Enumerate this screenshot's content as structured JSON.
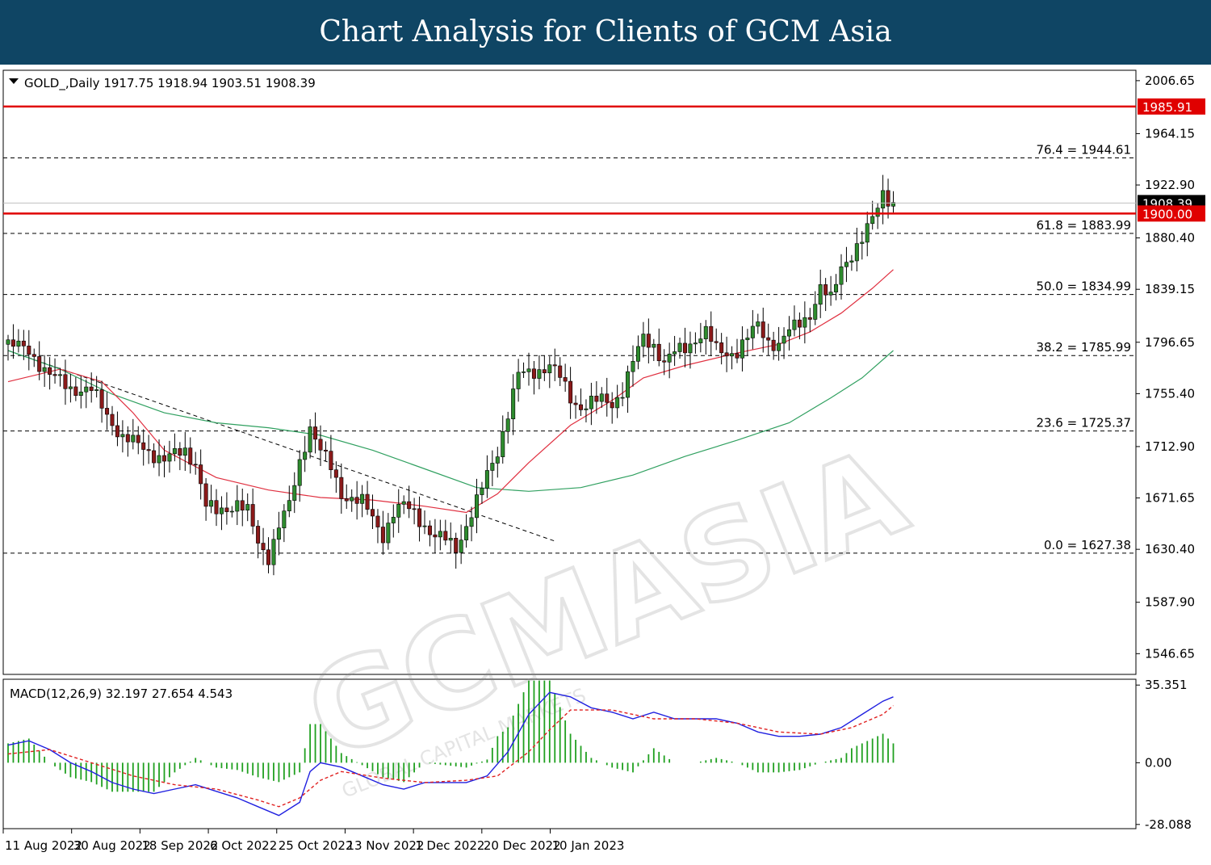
{
  "banner": {
    "title": "Chart Analysis for Clients of GCM Asia"
  },
  "watermark": {
    "brand": "GCMASIA",
    "tagline": "GLOBAL CAPITAL MARKETS"
  },
  "colors": {
    "banner": "#0f4564",
    "bull": "#2e8b2e",
    "bear": "#8b1a1a",
    "level": "#e00000",
    "ma_fast": "#e03040",
    "ma_slow": "#30a060",
    "macd": "#2020e0",
    "signal": "#e02020",
    "hist": "#20a020"
  },
  "chart_data": [
    {
      "type": "candlestick",
      "header": "GOLD_,Daily  1917.75 1918.94 1903.51 1908.39",
      "symbol": "GOLD_",
      "timeframe": "Daily",
      "ohlc_last": {
        "open": 1917.75,
        "high": 1918.94,
        "low": 1903.51,
        "close": 1908.39
      },
      "ylim": [
        1530,
        2015
      ],
      "y_ticks": [
        "2006.65",
        "1964.15",
        "1922.90",
        "1880.40",
        "1839.15",
        "1796.65",
        "1755.40",
        "1712.90",
        "1671.65",
        "1630.40",
        "1587.90",
        "1546.65"
      ],
      "x_ticks": [
        "11 Aug 2022",
        "30 Aug 2022",
        "18 Sep 2022",
        "6 Oct 2022",
        "25 Oct 2022",
        "13 Nov 2022",
        "1 Dec 2022",
        "20 Dec 2022",
        "10 Jan 2023"
      ],
      "current_price_label": "1908.39",
      "horizontal_levels": [
        {
          "value": 1985.91,
          "label": "1985.91"
        },
        {
          "value": 1900.0,
          "label": "1900.00"
        }
      ],
      "fibonacci": [
        {
          "ratio": "76.4",
          "value": 1944.61,
          "label": "76.4 = 1944.61"
        },
        {
          "ratio": "61.8",
          "value": 1883.99,
          "label": "61.8 = 1883.99"
        },
        {
          "ratio": "50.0",
          "value": 1834.99,
          "label": "50.0 = 1834.99"
        },
        {
          "ratio": "38.2",
          "value": 1785.99,
          "label": "38.2 = 1785.99"
        },
        {
          "ratio": "23.6",
          "value": 1725.37,
          "label": "23.6 = 1725.37"
        },
        {
          "ratio": "0.0",
          "value": 1627.38,
          "label": "0.0 = 1627.38"
        }
      ],
      "close_path": [
        [
          0,
          1795
        ],
        [
          4,
          1790
        ],
        [
          8,
          1770
        ],
        [
          12,
          1760
        ],
        [
          16,
          1758
        ],
        [
          18,
          1745
        ],
        [
          22,
          1720
        ],
        [
          26,
          1712
        ],
        [
          30,
          1702
        ],
        [
          34,
          1710
        ],
        [
          36,
          1700
        ],
        [
          38,
          1665
        ],
        [
          40,
          1660
        ],
        [
          44,
          1668
        ],
        [
          46,
          1660
        ],
        [
          48,
          1635
        ],
        [
          50,
          1625
        ],
        [
          52,
          1650
        ],
        [
          54,
          1665
        ],
        [
          56,
          1700
        ],
        [
          58,
          1730
        ],
        [
          60,
          1710
        ],
        [
          62,
          1695
        ],
        [
          64,
          1675
        ],
        [
          66,
          1672
        ],
        [
          68,
          1668
        ],
        [
          70,
          1655
        ],
        [
          72,
          1642
        ],
        [
          74,
          1660
        ],
        [
          76,
          1665
        ],
        [
          78,
          1660
        ],
        [
          80,
          1650
        ],
        [
          82,
          1640
        ],
        [
          84,
          1638
        ],
        [
          86,
          1632
        ],
        [
          88,
          1650
        ],
        [
          90,
          1668
        ],
        [
          92,
          1690
        ],
        [
          94,
          1710
        ],
        [
          96,
          1740
        ],
        [
          98,
          1770
        ],
        [
          100,
          1772
        ],
        [
          102,
          1775
        ],
        [
          104,
          1778
        ],
        [
          106,
          1768
        ],
        [
          108,
          1752
        ],
        [
          110,
          1745
        ],
        [
          112,
          1748
        ],
        [
          114,
          1750
        ],
        [
          116,
          1748
        ],
        [
          118,
          1758
        ],
        [
          120,
          1780
        ],
        [
          122,
          1800
        ],
        [
          124,
          1795
        ],
        [
          126,
          1780
        ],
        [
          128,
          1788
        ],
        [
          130,
          1792
        ],
        [
          132,
          1800
        ],
        [
          134,
          1805
        ],
        [
          136,
          1790
        ],
        [
          138,
          1788
        ],
        [
          140,
          1790
        ],
        [
          142,
          1800
        ],
        [
          144,
          1810
        ],
        [
          146,
          1798
        ],
        [
          148,
          1795
        ],
        [
          150,
          1805
        ],
        [
          152,
          1812
        ],
        [
          154,
          1820
        ],
        [
          156,
          1840
        ],
        [
          158,
          1830
        ],
        [
          160,
          1858
        ],
        [
          162,
          1868
        ],
        [
          164,
          1878
        ],
        [
          166,
          1895
        ],
        [
          168,
          1918
        ],
        [
          170,
          1908
        ]
      ],
      "ma_fast_path": [
        [
          0,
          1765
        ],
        [
          10,
          1775
        ],
        [
          18,
          1765
        ],
        [
          24,
          1740
        ],
        [
          30,
          1710
        ],
        [
          40,
          1688
        ],
        [
          50,
          1678
        ],
        [
          60,
          1672
        ],
        [
          70,
          1670
        ],
        [
          80,
          1665
        ],
        [
          88,
          1660
        ],
        [
          94,
          1675
        ],
        [
          100,
          1700
        ],
        [
          108,
          1730
        ],
        [
          116,
          1750
        ],
        [
          122,
          1768
        ],
        [
          130,
          1778
        ],
        [
          140,
          1788
        ],
        [
          148,
          1795
        ],
        [
          154,
          1805
        ],
        [
          160,
          1820
        ],
        [
          166,
          1840
        ],
        [
          170,
          1855
        ]
      ],
      "ma_slow_path": [
        [
          0,
          1790
        ],
        [
          10,
          1775
        ],
        [
          20,
          1755
        ],
        [
          30,
          1740
        ],
        [
          40,
          1732
        ],
        [
          50,
          1728
        ],
        [
          60,
          1722
        ],
        [
          70,
          1710
        ],
        [
          80,
          1695
        ],
        [
          90,
          1680
        ],
        [
          100,
          1677
        ],
        [
          110,
          1680
        ],
        [
          120,
          1690
        ],
        [
          130,
          1705
        ],
        [
          140,
          1718
        ],
        [
          150,
          1732
        ],
        [
          158,
          1752
        ],
        [
          164,
          1768
        ],
        [
          170,
          1790
        ]
      ],
      "trendline": {
        "from": [
          0,
          1790
        ],
        "to": [
          105,
          1637
        ]
      }
    },
    {
      "type": "macd",
      "header": "MACD(12,26,9) 32.197 27.654 4.543",
      "params": "12,26,9",
      "values": {
        "macd": 32.197,
        "signal": 27.654,
        "histogram": 4.543
      },
      "ylim": [
        -30,
        38
      ],
      "y_ticks": [
        "35.351",
        "0.00",
        "-28.088"
      ],
      "macd_path": [
        [
          0,
          8
        ],
        [
          4,
          10
        ],
        [
          8,
          6
        ],
        [
          12,
          0
        ],
        [
          16,
          -4
        ],
        [
          20,
          -9
        ],
        [
          24,
          -12
        ],
        [
          28,
          -14
        ],
        [
          32,
          -12
        ],
        [
          36,
          -10
        ],
        [
          40,
          -13
        ],
        [
          44,
          -16
        ],
        [
          48,
          -20
        ],
        [
          52,
          -24
        ],
        [
          56,
          -18
        ],
        [
          58,
          -4
        ],
        [
          60,
          0
        ],
        [
          64,
          -2
        ],
        [
          68,
          -6
        ],
        [
          72,
          -10
        ],
        [
          76,
          -12
        ],
        [
          80,
          -9
        ],
        [
          84,
          -9
        ],
        [
          88,
          -9
        ],
        [
          92,
          -6
        ],
        [
          96,
          5
        ],
        [
          100,
          22
        ],
        [
          104,
          32
        ],
        [
          108,
          30
        ],
        [
          112,
          25
        ],
        [
          116,
          23
        ],
        [
          120,
          20
        ],
        [
          124,
          23
        ],
        [
          128,
          20
        ],
        [
          132,
          20
        ],
        [
          136,
          20
        ],
        [
          140,
          18
        ],
        [
          144,
          14
        ],
        [
          148,
          12
        ],
        [
          152,
          12
        ],
        [
          156,
          13
        ],
        [
          160,
          16
        ],
        [
          164,
          22
        ],
        [
          168,
          28
        ],
        [
          170,
          30
        ]
      ],
      "signal_path": [
        [
          0,
          4
        ],
        [
          8,
          6
        ],
        [
          16,
          0
        ],
        [
          24,
          -6
        ],
        [
          32,
          -10
        ],
        [
          40,
          -12
        ],
        [
          48,
          -17
        ],
        [
          52,
          -20
        ],
        [
          56,
          -16
        ],
        [
          60,
          -8
        ],
        [
          64,
          -4
        ],
        [
          72,
          -7
        ],
        [
          80,
          -9
        ],
        [
          88,
          -8
        ],
        [
          94,
          -6
        ],
        [
          100,
          5
        ],
        [
          104,
          15
        ],
        [
          108,
          24
        ],
        [
          116,
          24
        ],
        [
          124,
          20
        ],
        [
          132,
          20
        ],
        [
          140,
          18
        ],
        [
          148,
          14
        ],
        [
          156,
          13
        ],
        [
          162,
          16
        ],
        [
          168,
          22
        ],
        [
          170,
          26
        ]
      ]
    }
  ]
}
